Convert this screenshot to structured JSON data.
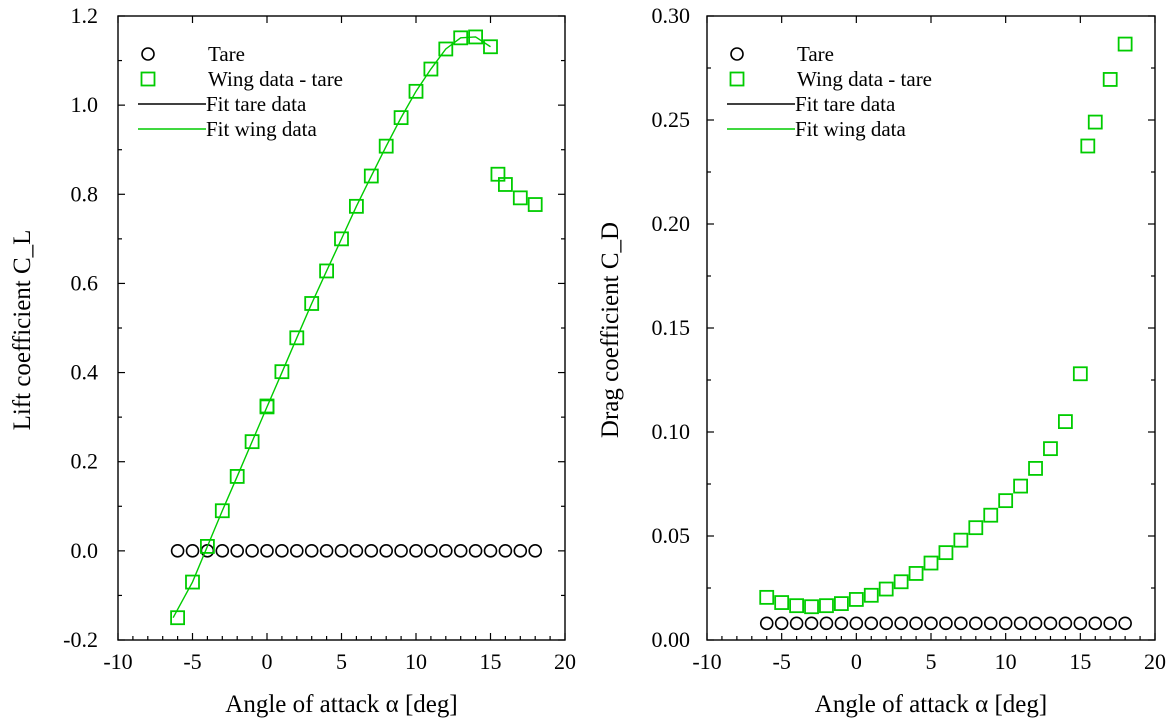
{
  "colors": {
    "tare": "#000000",
    "wing": "#00cc00"
  },
  "chart_data": [
    {
      "type": "scatter",
      "xlabel": "Angle of attack α [deg]",
      "ylabel": "Lift coefficient C_L",
      "xlim": [
        -10,
        20
      ],
      "ylim": [
        -0.2,
        1.2
      ],
      "xticks": [
        "-10",
        "-5",
        "0",
        "5",
        "10",
        "15",
        "20"
      ],
      "yticks": [
        "-0.2",
        "0.0",
        "0.2",
        "0.4",
        "0.6",
        "0.8",
        "1.0",
        "1.2"
      ],
      "legend": {
        "position": "top-left",
        "entries": [
          "Tare",
          "Wing data - tare",
          "Fit tare data",
          "Fit wing data"
        ]
      },
      "series": [
        {
          "name": "Tare",
          "marker": "circle",
          "color": "#000000",
          "x": [
            -6,
            -5,
            -4,
            -3,
            -2,
            -1,
            0,
            1,
            2,
            3,
            4,
            5,
            6,
            7,
            8,
            9,
            10,
            11,
            12,
            13,
            14,
            15,
            16,
            17,
            18
          ],
          "y": [
            0,
            0,
            0,
            0,
            0,
            0,
            0,
            0,
            0,
            0,
            0,
            0,
            0,
            0,
            0,
            0,
            0,
            0,
            0,
            0,
            0,
            0,
            0,
            0,
            0
          ]
        },
        {
          "name": "Wing data - tare",
          "marker": "square",
          "color": "#00cc00",
          "x": [
            -6,
            -5,
            -4,
            -3,
            -2,
            -1,
            0,
            0,
            1,
            2,
            3,
            4,
            5,
            6,
            7,
            8,
            9,
            10,
            11,
            12,
            13,
            14,
            15,
            15.5,
            16,
            17,
            18
          ],
          "y": [
            -0.15,
            -0.07,
            0.01,
            0.09,
            0.167,
            0.245,
            0.323,
            0.325,
            0.402,
            0.478,
            0.555,
            0.628,
            0.7,
            0.773,
            0.841,
            0.908,
            0.972,
            1.031,
            1.081,
            1.126,
            1.151,
            1.153,
            1.131,
            0.845,
            0.822,
            0.792,
            0.777
          ]
        },
        {
          "name": "Fit tare data",
          "marker": "line",
          "color": "#000000",
          "x": [],
          "y": []
        },
        {
          "name": "Fit wing data",
          "marker": "line",
          "color": "#00cc00",
          "x": [
            -6.3,
            -5,
            -4,
            -3,
            -2,
            -1,
            0,
            1,
            2,
            3,
            4,
            5,
            6,
            7,
            8,
            9,
            10,
            11,
            12,
            13,
            14,
            15
          ],
          "y": [
            -0.15,
            -0.07,
            0.01,
            0.09,
            0.167,
            0.245,
            0.323,
            0.4,
            0.478,
            0.555,
            0.628,
            0.7,
            0.773,
            0.841,
            0.908,
            0.972,
            1.031,
            1.081,
            1.126,
            1.151,
            1.153,
            1.131
          ]
        }
      ]
    },
    {
      "type": "scatter",
      "xlabel": "Angle of attack α [deg]",
      "ylabel": "Drag coefficient C_D",
      "xlim": [
        -10,
        20
      ],
      "ylim": [
        0,
        0.3
      ],
      "xticks": [
        "-10",
        "-5",
        "0",
        "5",
        "10",
        "15",
        "20"
      ],
      "yticks": [
        "0.00",
        "0.05",
        "0.10",
        "0.15",
        "0.20",
        "0.25",
        "0.30"
      ],
      "legend": {
        "position": "top-left",
        "entries": [
          "Tare",
          "Wing data - tare",
          "Fit tare data",
          "Fit wing data"
        ]
      },
      "series": [
        {
          "name": "Tare",
          "marker": "circle",
          "color": "#000000",
          "x": [
            -6,
            -5,
            -4,
            -3,
            -2,
            -1,
            0,
            1,
            2,
            3,
            4,
            5,
            6,
            7,
            8,
            9,
            10,
            11,
            12,
            13,
            14,
            15,
            16,
            17,
            18
          ],
          "y": [
            0.008,
            0.008,
            0.008,
            0.008,
            0.008,
            0.008,
            0.008,
            0.008,
            0.008,
            0.008,
            0.008,
            0.008,
            0.008,
            0.008,
            0.008,
            0.008,
            0.008,
            0.008,
            0.008,
            0.008,
            0.008,
            0.008,
            0.008,
            0.008,
            0.008
          ]
        },
        {
          "name": "Wing data - tare",
          "marker": "square",
          "color": "#00cc00",
          "x": [
            -6,
            -5,
            -4,
            -3,
            -2,
            -1,
            0,
            1,
            2,
            3,
            4,
            5,
            6,
            7,
            8,
            9,
            10,
            11,
            12,
            13,
            14,
            15,
            15.5,
            16,
            17,
            18
          ],
          "y": [
            0.0205,
            0.018,
            0.0165,
            0.016,
            0.0165,
            0.0175,
            0.0195,
            0.0215,
            0.0245,
            0.028,
            0.032,
            0.037,
            0.042,
            0.048,
            0.054,
            0.06,
            0.067,
            0.074,
            0.0825,
            0.092,
            0.105,
            0.128,
            0.2375,
            0.249,
            0.2695,
            0.2865
          ]
        },
        {
          "name": "Fit tare data",
          "marker": "line",
          "color": "#000000",
          "x": [],
          "y": []
        },
        {
          "name": "Fit wing data",
          "marker": "line",
          "color": "#00cc00",
          "x": [],
          "y": []
        }
      ]
    }
  ]
}
